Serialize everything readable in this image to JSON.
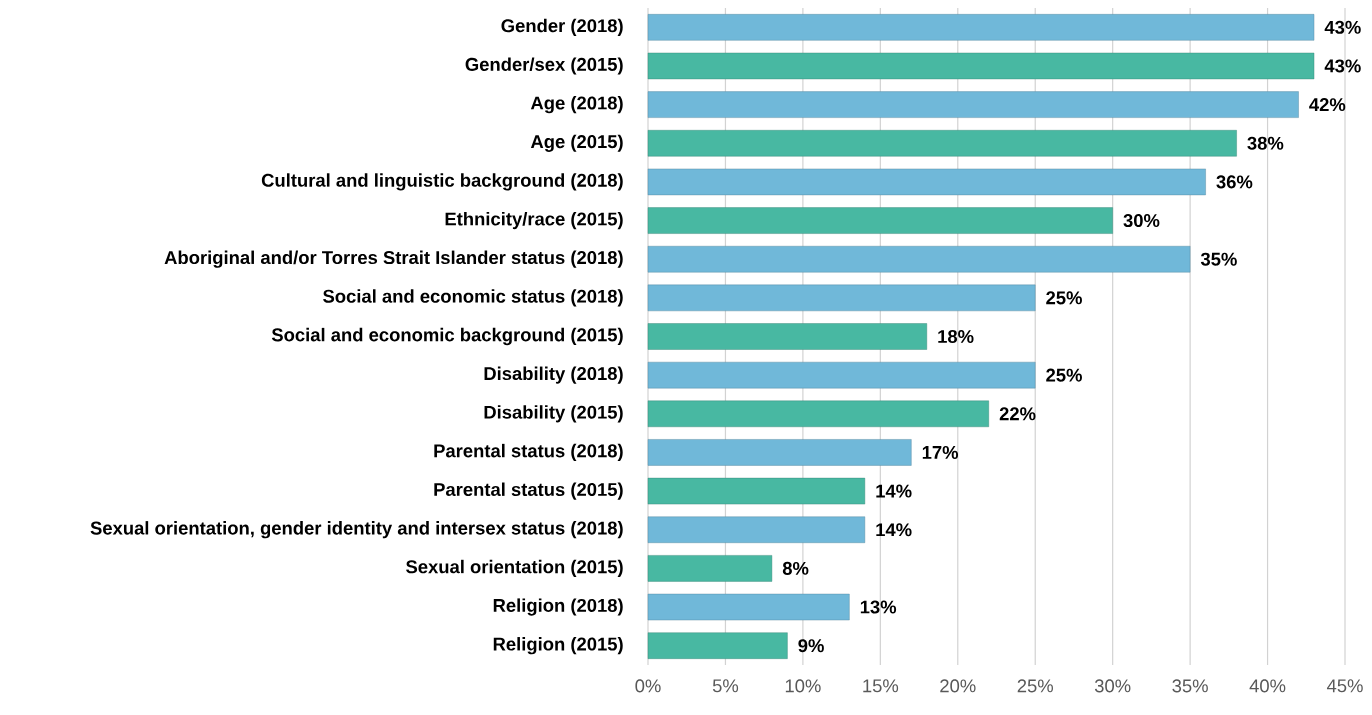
{
  "chart_data": {
    "type": "bar",
    "orientation": "horizontal",
    "categories": [
      "Gender (2018)",
      "Gender/sex (2015)",
      "Age (2018)",
      "Age (2015)",
      "Cultural and linguistic background (2018)",
      "Ethnicity/race (2015)",
      "Aboriginal and/or Torres Strait Islander status (2018)",
      "Social and economic status (2018)",
      "Social and economic background (2015)",
      "Disability (2018)",
      "Disability (2015)",
      "Parental status (2018)",
      "Parental status (2015)",
      "Sexual orientation, gender identity and intersex status (2018)",
      "Sexual orientation (2015)",
      "Religion (2018)",
      "Religion (2015)"
    ],
    "values": [
      43,
      43,
      42,
      38,
      36,
      30,
      35,
      25,
      18,
      25,
      22,
      17,
      14,
      14,
      8,
      13,
      9
    ],
    "value_labels": [
      "43%",
      "43%",
      "42%",
      "38%",
      "36%",
      "30%",
      "35%",
      "25%",
      "18%",
      "25%",
      "22%",
      "17%",
      "14%",
      "14%",
      "8%",
      "13%",
      "9%"
    ],
    "colors": [
      "#70b8d9",
      "#48b8a2",
      "#70b8d9",
      "#48b8a2",
      "#70b8d9",
      "#48b8a2",
      "#70b8d9",
      "#70b8d9",
      "#48b8a2",
      "#70b8d9",
      "#48b8a2",
      "#70b8d9",
      "#48b8a2",
      "#70b8d9",
      "#48b8a2",
      "#70b8d9",
      "#48b8a2"
    ],
    "xlim": [
      0,
      45
    ],
    "xticks": [
      {
        "value": 0,
        "label": "0%"
      },
      {
        "value": 5,
        "label": "5%"
      },
      {
        "value": 10,
        "label": "10%"
      },
      {
        "value": 15,
        "label": "15%"
      },
      {
        "value": 20,
        "label": "20%"
      },
      {
        "value": 25,
        "label": "25%"
      },
      {
        "value": 30,
        "label": "30%"
      },
      {
        "value": 35,
        "label": "35%"
      },
      {
        "value": 40,
        "label": "40%"
      },
      {
        "value": 45,
        "label": "45%"
      }
    ],
    "grid": "x"
  }
}
